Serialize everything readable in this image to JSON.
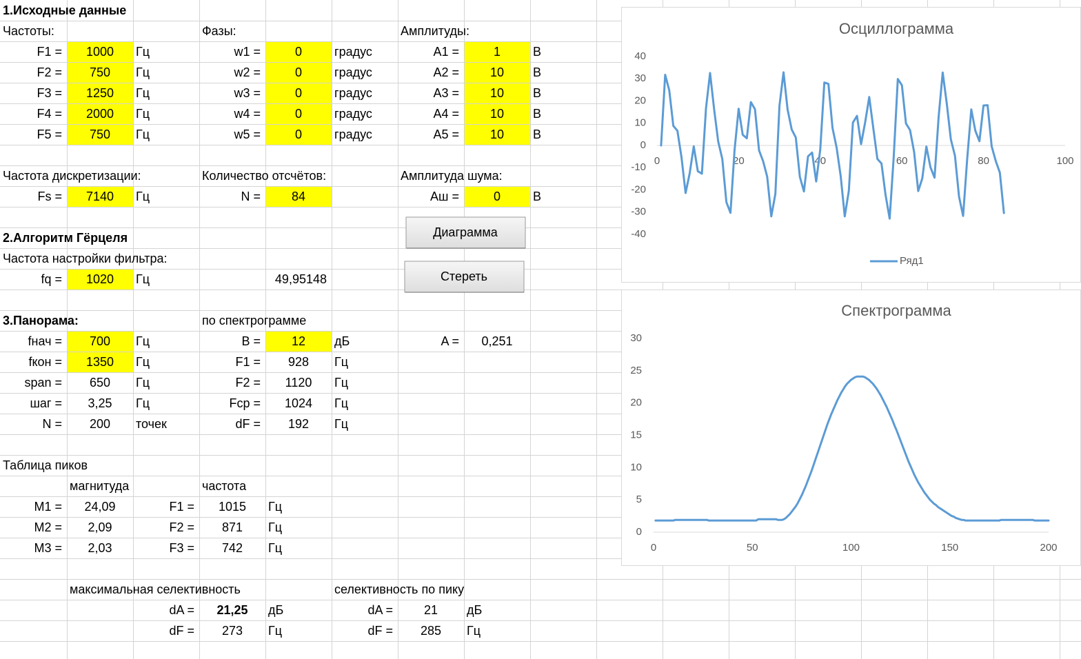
{
  "sheet": {
    "rows": [
      [
        {
          "text": "1.Исходные данные",
          "bold": true
        }
      ],
      [
        "Частоты:",
        null,
        null,
        "Фазы:",
        null,
        null,
        "Амплитуды:"
      ],
      [
        "F1 =",
        {
          "text": "1000",
          "fill": "#ffff00"
        },
        "Гц",
        "w1 =",
        {
          "text": "0",
          "fill": "#ffff00"
        },
        "градус",
        "A1 =",
        {
          "text": "1",
          "fill": "#ffff00"
        },
        "В"
      ],
      [
        "F2 =",
        {
          "text": "750",
          "fill": "#ffff00"
        },
        "Гц",
        "w2 =",
        {
          "text": "0",
          "fill": "#ffff00"
        },
        "градус",
        "A2 =",
        {
          "text": "10",
          "fill": "#ffff00"
        },
        "В"
      ],
      [
        "F3 =",
        {
          "text": "1250",
          "fill": "#ffff00"
        },
        "Гц",
        "w3 =",
        {
          "text": "0",
          "fill": "#ffff00"
        },
        "градус",
        "A3 =",
        {
          "text": "10",
          "fill": "#ffff00"
        },
        "В"
      ],
      [
        "F4 =",
        {
          "text": "2000",
          "fill": "#ffff00"
        },
        "Гц",
        "w4 =",
        {
          "text": "0",
          "fill": "#ffff00"
        },
        "градус",
        "A4 =",
        {
          "text": "10",
          "fill": "#ffff00"
        },
        "В"
      ],
      [
        "F5 =",
        {
          "text": "750",
          "fill": "#ffff00"
        },
        "Гц",
        "w5 =",
        {
          "text": "0",
          "fill": "#ffff00"
        },
        "градус",
        "A5 =",
        {
          "text": "10",
          "fill": "#ffff00"
        },
        "В"
      ],
      [],
      [
        "Частота дискретизации:",
        null,
        null,
        "Количество отсчётов:",
        null,
        null,
        "Амплитуда шума:"
      ],
      [
        "Fs =",
        {
          "text": "7140",
          "fill": "#ffff00"
        },
        "Гц",
        "N =",
        {
          "text": "84",
          "fill": "#ffff00"
        },
        null,
        "Aш =",
        {
          "text": "0",
          "fill": "#ffff00"
        },
        "В"
      ],
      [],
      [
        {
          "text": "2.Алгоритм Гёрцеля",
          "bold": true
        }
      ],
      [
        "Частота настройки фильтра:"
      ],
      [
        "fq =",
        {
          "text": "1020",
          "fill": "#ffff00"
        },
        "Гц",
        null,
        {
          "text": "49,95148",
          "align": "right"
        }
      ],
      [],
      [
        {
          "text": "3.Панорама:",
          "bold": true
        },
        null,
        null,
        "по спектрограмме"
      ],
      [
        "fнач =",
        {
          "text": "700",
          "fill": "#ffff00"
        },
        "Гц",
        "B =",
        {
          "text": "12",
          "fill": "#ffff00"
        },
        "дБ",
        "A =",
        "0,251"
      ],
      [
        "fкон =",
        {
          "text": "1350",
          "fill": "#ffff00"
        },
        "Гц",
        "F1 =",
        "928",
        "Гц"
      ],
      [
        "span =",
        "650",
        "Гц",
        "F2 =",
        "1120",
        "Гц"
      ],
      [
        "шаг =",
        "3,25",
        "Гц",
        "Fср =",
        "1024",
        "Гц"
      ],
      [
        "N =",
        "200",
        "точек",
        "dF =",
        "192",
        "Гц"
      ],
      [],
      [
        "Таблица пиков"
      ],
      [
        null,
        "магнитуда",
        null,
        "частота"
      ],
      [
        "M1 =",
        "24,09",
        "F1 =",
        "1015",
        "Гц"
      ],
      [
        "M2 =",
        "2,09",
        "F2 =",
        "871",
        "Гц"
      ],
      [
        "M3 =",
        "2,03",
        "F3 =",
        "742",
        "Гц"
      ],
      [],
      [
        null,
        "максимальная селективность",
        null,
        null,
        null,
        "селективность по пику"
      ],
      [
        null,
        null,
        "dA =",
        {
          "text": "21,25",
          "bold": true
        },
        "дБ",
        "dA =",
        "21",
        "дБ"
      ],
      [
        null,
        null,
        "dF =",
        "273",
        "Гц",
        "dF =",
        "285",
        "Гц"
      ]
    ]
  },
  "buttons": [
    "Диаграмма",
    "Стереть"
  ],
  "chart_data": [
    {
      "type": "line",
      "title": "Осциллограмма",
      "x": [
        1,
        2,
        3,
        4,
        5,
        6,
        7,
        8,
        9,
        10,
        11,
        12,
        13,
        14,
        15,
        16,
        17,
        18,
        19,
        20,
        21,
        22,
        23,
        24,
        25,
        26,
        27,
        28,
        29,
        30,
        31,
        32,
        33,
        34,
        35,
        36,
        37,
        38,
        39,
        40,
        41,
        42,
        43,
        44,
        45,
        46,
        47,
        48,
        49,
        50,
        51,
        52,
        53,
        54,
        55,
        56,
        57,
        58,
        59,
        60,
        61,
        62,
        63,
        64,
        65,
        66,
        67,
        68,
        69,
        70,
        71,
        72,
        73,
        74,
        75,
        76,
        77,
        78,
        79,
        80,
        81,
        82,
        83,
        84,
        85
      ],
      "series": [
        {
          "name": "Ряд1",
          "color": "#5b9bd5",
          "values": [
            0,
            31.8,
            24.8,
            8.8,
            6.6,
            -5.3,
            -21.4,
            -12.6,
            -0.4,
            -11.6,
            -12.7,
            16.7,
            32.6,
            16.2,
            1.7,
            -6.1,
            -25.5,
            -30.3,
            -2.1,
            16.5,
            4.8,
            3.2,
            19.5,
            16.3,
            -2.2,
            -7.1,
            -14.1,
            -31.9,
            -21.8,
            17.8,
            32.9,
            16.1,
            7.2,
            3.6,
            -14.1,
            -20.7,
            -4.9,
            -3.2,
            -16.2,
            -1.8,
            28.3,
            27.7,
            7.9,
            -0.9,
            -13.7,
            -31.9,
            -20.4,
            10.3,
            13.3,
            0.6,
            10.4,
            21.8,
            7.7,
            -6.1,
            -8.1,
            -22.3,
            -32.9,
            -5.1,
            29.9,
            27.1,
            9.9,
            6.9,
            -3.0,
            -20.5,
            -14.8,
            -0.5,
            -9.8,
            -14.5,
            12.8,
            32.8,
            18.8,
            2.7,
            -4.6,
            -23.0,
            -31.7,
            -6.1,
            16.2,
            6.6,
            1.9,
            18.0,
            18.1,
            -0.4,
            -7.0,
            -12.2,
            -30.4
          ]
        }
      ],
      "xlim": [
        0,
        100
      ],
      "xticks": [
        0,
        20,
        40,
        60,
        80,
        100
      ],
      "ylim": [
        -40,
        40
      ],
      "yticks": [
        -40,
        -30,
        -20,
        -10,
        0,
        10,
        20,
        30,
        40
      ],
      "grid": false,
      "legend": "bottom"
    },
    {
      "type": "line",
      "title": "Спектрограмма",
      "x": [
        1,
        2,
        3,
        4,
        5,
        6,
        7,
        8,
        9,
        10,
        11,
        12,
        13,
        14,
        15,
        16,
        17,
        18,
        19,
        20,
        21,
        22,
        23,
        24,
        25,
        26,
        27,
        28,
        29,
        30,
        31,
        32,
        33,
        34,
        35,
        36,
        37,
        38,
        39,
        40,
        41,
        42,
        43,
        44,
        45,
        46,
        47,
        48,
        49,
        50,
        51,
        52,
        53,
        54,
        55,
        56,
        57,
        58,
        59,
        60,
        61,
        62,
        63,
        64,
        65,
        66,
        67,
        68,
        69,
        70,
        71,
        72,
        73,
        74,
        75,
        76,
        77,
        78,
        79,
        80,
        81,
        82,
        83,
        84,
        85,
        86,
        87,
        88,
        89,
        90,
        91,
        92,
        93,
        94,
        95,
        96,
        97,
        98,
        99,
        100,
        101,
        102,
        103,
        104,
        105,
        106,
        107,
        108,
        109,
        110,
        111,
        112,
        113,
        114,
        115,
        116,
        117,
        118,
        119,
        120,
        121,
        122,
        123,
        124,
        125,
        126,
        127,
        128,
        129,
        130,
        131,
        132,
        133,
        134,
        135,
        136,
        137,
        138,
        139,
        140,
        141,
        142,
        143,
        144,
        145,
        146,
        147,
        148,
        149,
        150,
        151,
        152,
        153,
        154,
        155,
        156,
        157,
        158,
        159,
        160,
        161,
        162,
        163,
        164,
        165,
        166,
        167,
        168,
        169,
        170,
        171,
        172,
        173,
        174,
        175,
        176,
        177,
        178,
        179,
        180,
        181,
        182,
        183,
        184,
        185,
        186,
        187,
        188,
        189,
        190,
        191,
        192,
        193,
        194,
        195,
        196,
        197,
        198,
        199,
        200
      ],
      "series": [
        {
          "color": "#5b9bd5",
          "values": [
            1.8,
            1.8,
            1.8,
            1.8,
            1.8,
            1.8,
            1.8,
            1.8,
            1.8,
            1.8,
            1.9,
            1.9,
            1.9,
            1.9,
            1.9,
            1.9,
            1.9,
            1.9,
            1.9,
            1.9,
            1.9,
            1.9,
            1.9,
            1.9,
            1.9,
            1.9,
            1.9,
            1.8,
            1.8,
            1.8,
            1.8,
            1.8,
            1.8,
            1.8,
            1.8,
            1.8,
            1.8,
            1.8,
            1.8,
            1.8,
            1.8,
            1.8,
            1.8,
            1.8,
            1.8,
            1.8,
            1.8,
            1.8,
            1.8,
            1.8,
            1.8,
            1.8,
            2.0,
            2.0,
            2.0,
            2.0,
            2.0,
            2.0,
            2.0,
            2.0,
            2.0,
            2.0,
            1.9,
            1.9,
            1.9,
            2.0,
            2.2,
            2.5,
            2.8,
            3.2,
            3.6,
            4.0,
            4.5,
            5.1,
            5.7,
            6.4,
            7.1,
            7.9,
            8.7,
            9.5,
            10.4,
            11.3,
            12.2,
            13.1,
            14.0,
            14.9,
            15.8,
            16.7,
            17.5,
            18.3,
            19.0,
            19.7,
            20.4,
            21.0,
            21.6,
            22.1,
            22.6,
            23.0,
            23.3,
            23.6,
            23.8,
            24.0,
            24.1,
            24.1,
            24.1,
            24.1,
            24.0,
            23.8,
            23.6,
            23.3,
            23.0,
            22.6,
            22.2,
            21.7,
            21.2,
            20.6,
            20.0,
            19.4,
            18.7,
            18.0,
            17.3,
            16.5,
            15.8,
            15.0,
            14.2,
            13.4,
            12.6,
            11.8,
            11.0,
            10.3,
            9.6,
            8.9,
            8.3,
            7.7,
            7.2,
            6.7,
            6.2,
            5.8,
            5.4,
            5.0,
            4.7,
            4.4,
            4.2,
            3.9,
            3.7,
            3.5,
            3.3,
            3.1,
            2.9,
            2.7,
            2.5,
            2.4,
            2.2,
            2.1,
            2.0,
            1.9,
            1.9,
            1.8,
            1.8,
            1.8,
            1.8,
            1.8,
            1.8,
            1.8,
            1.8,
            1.8,
            1.8,
            1.8,
            1.8,
            1.8,
            1.8,
            1.8,
            1.8,
            1.8,
            1.8,
            1.9,
            1.9,
            1.9,
            1.9,
            1.9,
            1.9,
            1.9,
            1.9,
            1.9,
            1.9,
            1.9,
            1.9,
            1.9,
            1.9,
            1.9,
            1.9,
            1.9,
            1.8,
            1.8,
            1.8,
            1.8,
            1.8,
            1.8,
            1.8,
            1.8
          ]
        }
      ],
      "xlim": [
        0,
        200
      ],
      "xticks": [
        0,
        50,
        100,
        150,
        200
      ],
      "ylim": [
        0,
        30
      ],
      "yticks": [
        0,
        5,
        10,
        15,
        20,
        25,
        30
      ],
      "grid": false
    }
  ]
}
